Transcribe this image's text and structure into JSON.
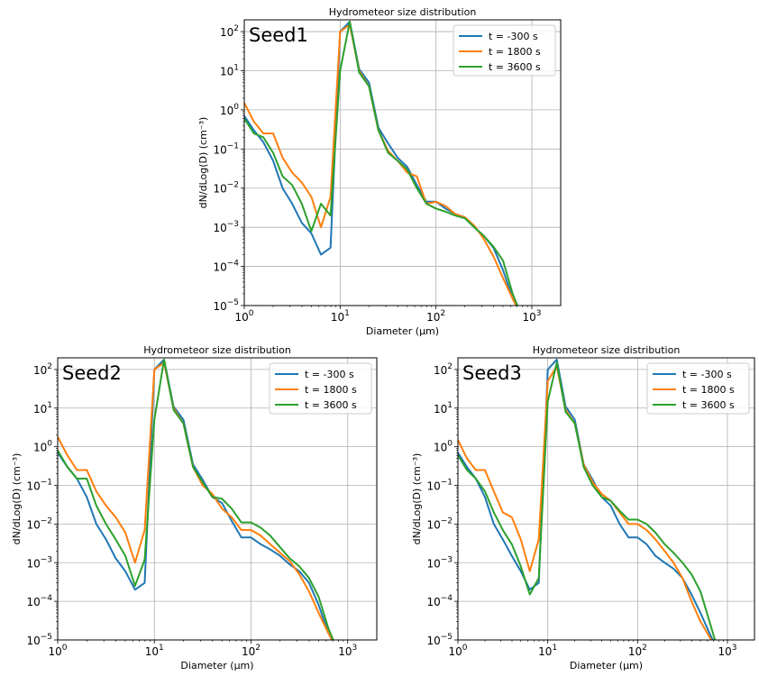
{
  "figure": {
    "series_legend": [
      {
        "label": "t = -300 s",
        "color": "#1f77b4"
      },
      {
        "label": "t = 1800 s",
        "color": "#ff7f0e"
      },
      {
        "label": "t = 3600 s",
        "color": "#2ca02c"
      }
    ]
  },
  "chart_data": [
    {
      "type": "line",
      "title": "Hydrometeor size distribution",
      "panel_label": "Seed1",
      "xlabel": "Diameter (µm)",
      "ylabel": "dN/dLog(D) (cm⁻³)",
      "xscale": "log",
      "yscale": "log",
      "xlim": [
        1,
        2000
      ],
      "ylim": [
        1e-05,
        200
      ],
      "grid": true,
      "legend_position": "top-right",
      "xticks": [
        1,
        10,
        100,
        1000
      ],
      "xtick_labels": [
        "10",
        "10",
        "10",
        "10"
      ],
      "xtick_exps": [
        "0",
        "1",
        "2",
        "3"
      ],
      "yticks": [
        1e-05,
        0.0001,
        0.001,
        0.01,
        0.1,
        1,
        10,
        100
      ],
      "ytick_labels": [
        "10",
        "10",
        "10",
        "10",
        "10",
        "10",
        "10",
        "10"
      ],
      "ytick_exps": [
        "−5",
        "−4",
        "−3",
        "−2",
        "−1",
        "0",
        "1",
        "2"
      ],
      "series": [
        {
          "name": "t = -300 s",
          "color": "#1f77b4",
          "x": [
            1,
            1.26,
            1.58,
            2,
            2.51,
            3.16,
            3.98,
            5.01,
            6.31,
            7.94,
            10,
            12.6,
            15.8,
            20,
            25.1,
            31.6,
            39.8,
            50.1,
            63.1,
            79.4,
            100,
            126,
            158,
            200,
            251,
            316,
            398,
            501,
            631,
            794
          ],
          "y": [
            0.7,
            0.3,
            0.15,
            0.05,
            0.01,
            0.004,
            0.0013,
            0.0007,
            0.0002,
            0.0003,
            100,
            180,
            11,
            5,
            0.35,
            0.14,
            0.06,
            0.035,
            0.012,
            0.0045,
            0.0045,
            0.003,
            0.0022,
            0.0018,
            0.001,
            0.0006,
            0.0003,
            8e-05,
            1.5e-05,
            5e-06
          ]
        },
        {
          "name": "t = 1800 s",
          "color": "#ff7f0e",
          "x": [
            1,
            1.26,
            1.58,
            2,
            2.51,
            3.16,
            3.98,
            5.01,
            6.31,
            7.94,
            10,
            12.6,
            15.8,
            20,
            25.1,
            31.6,
            39.8,
            50.1,
            63.1,
            79.4,
            100,
            126,
            158,
            200,
            251,
            316,
            398,
            501,
            631,
            794
          ],
          "y": [
            1.5,
            0.5,
            0.25,
            0.25,
            0.06,
            0.025,
            0.014,
            0.006,
            0.001,
            0.006,
            100,
            150,
            10,
            4,
            0.3,
            0.09,
            0.05,
            0.025,
            0.02,
            0.004,
            0.0045,
            0.0035,
            0.0022,
            0.0018,
            0.0011,
            0.0005,
            0.00018,
            5e-05,
            1.5e-05,
            5e-06
          ]
        },
        {
          "name": "t = 3600 s",
          "color": "#2ca02c",
          "x": [
            1,
            1.26,
            1.58,
            2,
            2.51,
            3.16,
            3.98,
            5.01,
            6.31,
            7.94,
            10,
            12.6,
            15.8,
            20,
            25.1,
            31.6,
            39.8,
            50.1,
            63.1,
            79.4,
            100,
            126,
            158,
            200,
            251,
            316,
            398,
            501,
            631,
            794
          ],
          "y": [
            0.6,
            0.25,
            0.2,
            0.08,
            0.02,
            0.012,
            0.004,
            0.0008,
            0.004,
            0.002,
            10,
            180,
            9,
            4,
            0.3,
            0.08,
            0.05,
            0.03,
            0.01,
            0.004,
            0.003,
            0.0025,
            0.002,
            0.0017,
            0.001,
            0.0006,
            0.00032,
            0.00014,
            2e-05,
            5e-06
          ]
        }
      ]
    },
    {
      "type": "line",
      "title": "Hydrometeor size distribution",
      "panel_label": "Seed2",
      "xlabel": "Diameter (µm)",
      "ylabel": "dN/dLog(D) (cm⁻³)",
      "xscale": "log",
      "yscale": "log",
      "xlim": [
        1,
        2000
      ],
      "ylim": [
        1e-05,
        200
      ],
      "grid": true,
      "legend_position": "top-right",
      "xticks": [
        1,
        10,
        100,
        1000
      ],
      "xtick_labels": [
        "10",
        "10",
        "10",
        "10"
      ],
      "xtick_exps": [
        "0",
        "1",
        "2",
        "3"
      ],
      "yticks": [
        1e-05,
        0.0001,
        0.001,
        0.01,
        0.1,
        1,
        10,
        100
      ],
      "ytick_labels": [
        "10",
        "10",
        "10",
        "10",
        "10",
        "10",
        "10",
        "10"
      ],
      "ytick_exps": [
        "−5",
        "−4",
        "−3",
        "−2",
        "−1",
        "0",
        "1",
        "2"
      ],
      "series": [
        {
          "name": "t = -300 s",
          "color": "#1f77b4",
          "x": [
            1,
            1.26,
            1.58,
            2,
            2.51,
            3.16,
            3.98,
            5.01,
            6.31,
            7.94,
            10,
            12.6,
            15.8,
            20,
            25.1,
            31.6,
            39.8,
            50.1,
            63.1,
            79.4,
            100,
            126,
            158,
            200,
            251,
            316,
            398,
            501,
            631,
            794
          ],
          "y": [
            0.7,
            0.3,
            0.15,
            0.05,
            0.01,
            0.004,
            0.0013,
            0.0006,
            0.0002,
            0.0003,
            100,
            180,
            11,
            5,
            0.35,
            0.14,
            0.05,
            0.035,
            0.012,
            0.0045,
            0.0045,
            0.003,
            0.0022,
            0.0015,
            0.0009,
            0.0006,
            0.0003,
            8e-05,
            1.5e-05,
            5e-06
          ]
        },
        {
          "name": "t = 1800 s",
          "color": "#ff7f0e",
          "x": [
            1,
            1.26,
            1.58,
            2,
            2.51,
            3.16,
            3.98,
            5.01,
            6.31,
            7.94,
            10,
            12.6,
            15.8,
            20,
            25.1,
            31.6,
            39.8,
            50.1,
            63.1,
            79.4,
            100,
            126,
            158,
            200,
            251,
            316,
            398,
            501,
            631,
            794
          ],
          "y": [
            1.8,
            0.6,
            0.25,
            0.25,
            0.07,
            0.03,
            0.015,
            0.006,
            0.001,
            0.007,
            100,
            150,
            10,
            4,
            0.3,
            0.1,
            0.06,
            0.025,
            0.015,
            0.007,
            0.007,
            0.005,
            0.003,
            0.0018,
            0.0011,
            0.0005,
            0.00018,
            5e-05,
            1.5e-05,
            5e-06
          ]
        },
        {
          "name": "t = 3600 s",
          "color": "#2ca02c",
          "x": [
            1,
            1.26,
            1.58,
            2,
            2.51,
            3.16,
            3.98,
            5.01,
            6.31,
            7.94,
            10,
            12.6,
            15.8,
            20,
            25.1,
            31.6,
            39.8,
            50.1,
            63.1,
            79.4,
            100,
            126,
            158,
            200,
            251,
            316,
            398,
            501,
            631,
            794
          ],
          "y": [
            0.8,
            0.3,
            0.15,
            0.15,
            0.03,
            0.01,
            0.004,
            0.0015,
            0.00025,
            0.0012,
            5,
            180,
            9,
            4,
            0.3,
            0.12,
            0.05,
            0.045,
            0.025,
            0.011,
            0.011,
            0.008,
            0.005,
            0.0025,
            0.0013,
            0.0008,
            0.0004,
            0.00013,
            2e-05,
            5e-06
          ]
        }
      ]
    },
    {
      "type": "line",
      "title": "Hydrometeor size distribution",
      "panel_label": "Seed3",
      "xlabel": "Diameter (µm)",
      "ylabel": "dN/dLog(D) (cm⁻³)",
      "xscale": "log",
      "yscale": "log",
      "xlim": [
        1,
        2000
      ],
      "ylim": [
        1e-05,
        200
      ],
      "grid": true,
      "legend_position": "top-right",
      "xticks": [
        1,
        10,
        100,
        1000
      ],
      "xtick_labels": [
        "10",
        "10",
        "10",
        "10"
      ],
      "xtick_exps": [
        "0",
        "1",
        "2",
        "3"
      ],
      "yticks": [
        1e-05,
        0.0001,
        0.001,
        0.01,
        0.1,
        1,
        10,
        100
      ],
      "ytick_labels": [
        "10",
        "10",
        "10",
        "10",
        "10",
        "10",
        "10",
        "10"
      ],
      "ytick_exps": [
        "−5",
        "−4",
        "−3",
        "−2",
        "−1",
        "0",
        "1",
        "2"
      ],
      "series": [
        {
          "name": "t = -300 s",
          "color": "#1f77b4",
          "x": [
            1,
            1.26,
            1.58,
            2,
            2.51,
            3.16,
            3.98,
            5.01,
            6.31,
            7.94,
            10,
            12.6,
            15.8,
            20,
            25.1,
            31.6,
            39.8,
            50.1,
            63.1,
            79.4,
            100,
            126,
            158,
            200,
            251,
            316,
            398,
            501,
            631,
            794
          ],
          "y": [
            0.7,
            0.3,
            0.15,
            0.05,
            0.01,
            0.004,
            0.0015,
            0.0006,
            0.0002,
            0.0003,
            100,
            180,
            11,
            5,
            0.35,
            0.14,
            0.05,
            0.03,
            0.01,
            0.0045,
            0.0045,
            0.003,
            0.0015,
            0.001,
            0.0007,
            0.0004,
            0.00015,
            5e-05,
            1.5e-05,
            5e-06
          ]
        },
        {
          "name": "t = 1800 s",
          "color": "#ff7f0e",
          "x": [
            1,
            1.26,
            1.58,
            2,
            2.51,
            3.16,
            3.98,
            5.01,
            6.31,
            7.94,
            10,
            12.6,
            15.8,
            20,
            25.1,
            31.6,
            39.8,
            50.1,
            63.1,
            79.4,
            100,
            126,
            158,
            200,
            251,
            316,
            398,
            501,
            631,
            794
          ],
          "y": [
            1.5,
            0.5,
            0.25,
            0.25,
            0.07,
            0.02,
            0.015,
            0.004,
            0.0006,
            0.004,
            50,
            120,
            9,
            4,
            0.35,
            0.12,
            0.06,
            0.04,
            0.02,
            0.01,
            0.01,
            0.007,
            0.004,
            0.002,
            0.001,
            0.0004,
            0.0001,
            3e-05,
            1.2e-05,
            5e-06
          ]
        },
        {
          "name": "t = 3600 s",
          "color": "#2ca02c",
          "x": [
            1,
            1.26,
            1.58,
            2,
            2.51,
            3.16,
            3.98,
            5.01,
            6.31,
            7.94,
            10,
            12.6,
            15.8,
            20,
            25.1,
            31.6,
            39.8,
            50.1,
            63.1,
            79.4,
            100,
            126,
            158,
            200,
            251,
            316,
            398,
            501,
            631,
            794
          ],
          "y": [
            0.6,
            0.25,
            0.15,
            0.07,
            0.02,
            0.007,
            0.003,
            0.0008,
            0.00015,
            0.0004,
            15,
            150,
            8,
            4,
            0.3,
            0.1,
            0.05,
            0.04,
            0.022,
            0.013,
            0.013,
            0.01,
            0.006,
            0.003,
            0.0018,
            0.001,
            0.0005,
            0.00018,
            3e-05,
            5e-06
          ]
        }
      ]
    }
  ]
}
